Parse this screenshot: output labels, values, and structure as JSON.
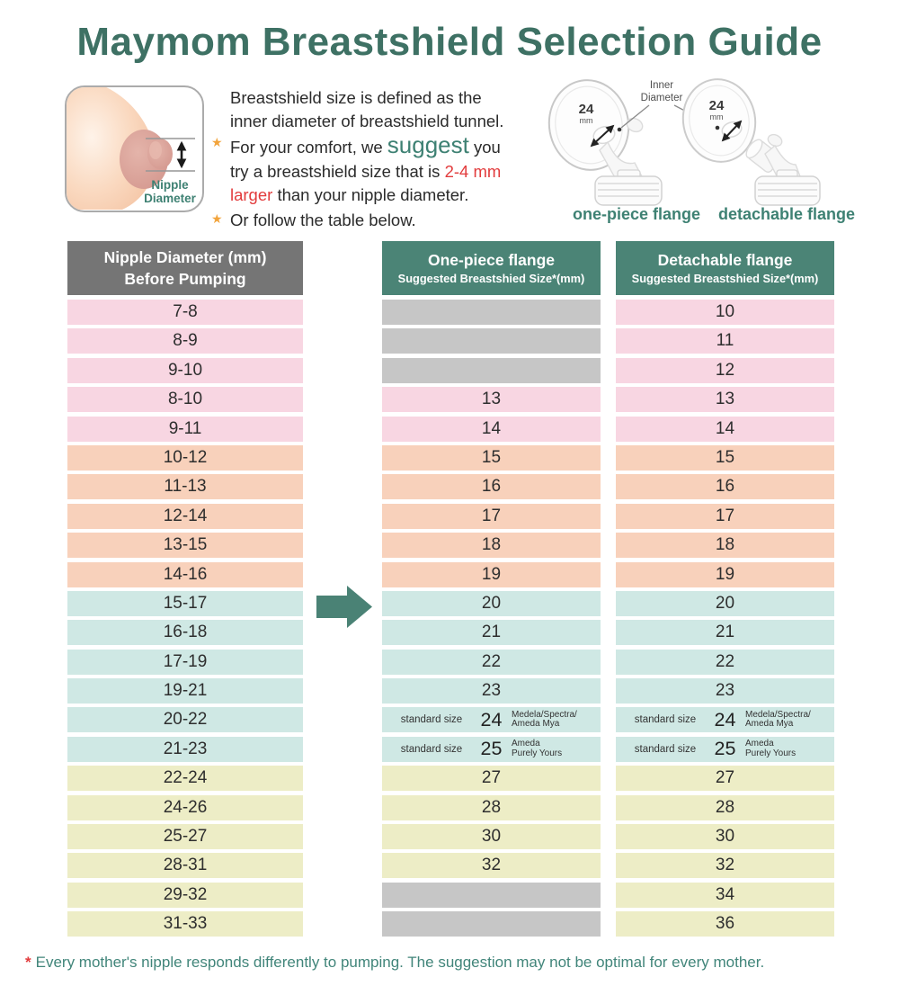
{
  "title": "Maymom Breastshield Selection Guide",
  "colors": {
    "title_teal": "#3E7164",
    "header_teal": "#4B8476",
    "header_gray": "#757575",
    "band_pink": "#F8D6E2",
    "band_salmon": "#F8D1BB",
    "band_cyan": "#CFE8E4",
    "band_yellow": "#EDEDC6",
    "band_blank_gray": "#C6C6C6",
    "accent_red": "#E23B3C",
    "star_orange": "#F2A43C",
    "arrow_teal": "#4A8275"
  },
  "intro": {
    "figure_label_line1": "Nipple",
    "figure_label_line2": "Diameter",
    "line1": "Breastshield size is defined as the",
    "line2": "inner diameter of breastshield tunnel.",
    "b1_pre": "For your comfort, we",
    "b1_highlight": "suggest",
    "b1_post": "you",
    "b1_l2_pre": "try a breastshield size that is",
    "b1_l2_red": "2-4 mm",
    "b1_l3_red": "larger",
    "b1_l3_post": "than your nipple diameter.",
    "b2": "Or follow the table below."
  },
  "flange_figures": {
    "inner_diameter_line1": "Inner",
    "inner_diameter_line2": "Diameter",
    "size": "24",
    "unit": "mm",
    "left_caption": "one-piece flange",
    "right_caption": "detachable flange"
  },
  "table": {
    "headers": {
      "col1_line1": "Nipple Diameter (mm)",
      "col1_line2": "Before Pumping",
      "col2_line1": "One-piece flange",
      "col2_line2": "Suggested Breastshied Size*(mm)",
      "col3_line1": "Detachable flange",
      "col3_line2": "Suggested Breastshied Size*(mm)"
    },
    "standard_label": "standard size",
    "rows": [
      {
        "nipple": "7-8",
        "band": "pink",
        "one_piece": "",
        "detachable": "10"
      },
      {
        "nipple": "8-9",
        "band": "pink",
        "one_piece": "",
        "detachable": "11"
      },
      {
        "nipple": "9-10",
        "band": "pink",
        "one_piece": "",
        "detachable": "12"
      },
      {
        "nipple": "8-10",
        "band": "pink",
        "one_piece": "13",
        "detachable": "13"
      },
      {
        "nipple": "9-11",
        "band": "pink",
        "one_piece": "14",
        "detachable": "14"
      },
      {
        "nipple": "10-12",
        "band": "salmon",
        "one_piece": "15",
        "detachable": "15"
      },
      {
        "nipple": "11-13",
        "band": "salmon",
        "one_piece": "16",
        "detachable": "16"
      },
      {
        "nipple": "12-14",
        "band": "salmon",
        "one_piece": "17",
        "detachable": "17"
      },
      {
        "nipple": "13-15",
        "band": "salmon",
        "one_piece": "18",
        "detachable": "18"
      },
      {
        "nipple": "14-16",
        "band": "salmon",
        "one_piece": "19",
        "detachable": "19"
      },
      {
        "nipple": "15-17",
        "band": "cyan",
        "one_piece": "20",
        "detachable": "20"
      },
      {
        "nipple": "16-18",
        "band": "cyan",
        "one_piece": "21",
        "detachable": "21"
      },
      {
        "nipple": "17-19",
        "band": "cyan",
        "one_piece": "22",
        "detachable": "22"
      },
      {
        "nipple": "19-21",
        "band": "cyan",
        "one_piece": "23",
        "detachable": "23"
      },
      {
        "nipple": "20-22",
        "band": "cyan",
        "one_piece": "24",
        "detachable": "24",
        "standard": true,
        "note": [
          "Medela/Spectra/",
          "Ameda Mya"
        ]
      },
      {
        "nipple": "21-23",
        "band": "cyan",
        "one_piece": "25",
        "detachable": "25",
        "standard": true,
        "note": [
          "Ameda",
          "Purely Yours"
        ]
      },
      {
        "nipple": "22-24",
        "band": "yellow",
        "one_piece": "27",
        "detachable": "27"
      },
      {
        "nipple": "24-26",
        "band": "yellow",
        "one_piece": "28",
        "detachable": "28"
      },
      {
        "nipple": "25-27",
        "band": "yellow",
        "one_piece": "30",
        "detachable": "30"
      },
      {
        "nipple": "28-31",
        "band": "yellow",
        "one_piece": "32",
        "detachable": "32"
      },
      {
        "nipple": "29-32",
        "band": "yellow",
        "one_piece": "",
        "detachable": "34"
      },
      {
        "nipple": "31-33",
        "band": "yellow",
        "one_piece": "",
        "detachable": "36"
      }
    ]
  },
  "footnote": {
    "asterisk": "*",
    "text": "Every mother's nipple responds differently to pumping. The suggestion may not be optimal for every mother."
  }
}
